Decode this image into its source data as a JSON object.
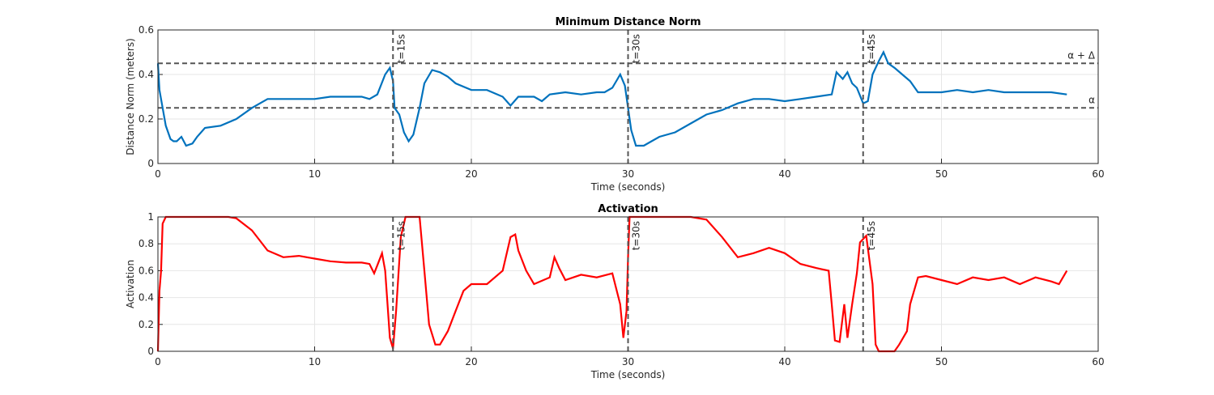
{
  "chart_data": [
    {
      "type": "line",
      "title": "Minimum Distance Norm",
      "xlabel": "Time (seconds)",
      "ylabel": "Distance Norm (meters)",
      "xlim": [
        0,
        60
      ],
      "ylim": [
        0,
        0.6
      ],
      "xticks": [
        0,
        10,
        20,
        30,
        40,
        50,
        60
      ],
      "yticks": [
        0,
        0.2,
        0.4,
        0.6
      ],
      "grid": true,
      "x": [
        0,
        0.1,
        0.3,
        0.5,
        0.8,
        1,
        1.2,
        1.5,
        1.8,
        2.2,
        2.5,
        3,
        4,
        5,
        6,
        7,
        8,
        9,
        10,
        11,
        12,
        13,
        13.5,
        14,
        14.5,
        14.8,
        15,
        15.1,
        15.4,
        15.7,
        16,
        16.3,
        16.7,
        17,
        17.5,
        18,
        18.5,
        19,
        20,
        21,
        22,
        22.5,
        23,
        24,
        24.5,
        25,
        26,
        27,
        28,
        28.5,
        29,
        29.5,
        29.8,
        30,
        30.2,
        30.5,
        31,
        31.5,
        32,
        33,
        34,
        35,
        36,
        37,
        38,
        39,
        40,
        41,
        42,
        43,
        43.3,
        43.7,
        44,
        44.3,
        44.6,
        45,
        45.3,
        45.6,
        46,
        46.3,
        46.6,
        47,
        47.5,
        48,
        48.5,
        49,
        50,
        51,
        52,
        53,
        54,
        55,
        56,
        57,
        58
      ],
      "series": [
        {
          "name": "Distance Norm",
          "color": "#0072BD",
          "values": [
            0.45,
            0.33,
            0.25,
            0.17,
            0.11,
            0.1,
            0.1,
            0.12,
            0.08,
            0.09,
            0.12,
            0.16,
            0.17,
            0.2,
            0.25,
            0.29,
            0.29,
            0.29,
            0.29,
            0.3,
            0.3,
            0.3,
            0.29,
            0.31,
            0.4,
            0.43,
            0.37,
            0.25,
            0.22,
            0.14,
            0.1,
            0.13,
            0.25,
            0.36,
            0.42,
            0.41,
            0.39,
            0.36,
            0.33,
            0.33,
            0.3,
            0.26,
            0.3,
            0.3,
            0.28,
            0.31,
            0.32,
            0.31,
            0.32,
            0.32,
            0.34,
            0.4,
            0.35,
            0.25,
            0.15,
            0.08,
            0.08,
            0.1,
            0.12,
            0.14,
            0.18,
            0.22,
            0.24,
            0.27,
            0.29,
            0.29,
            0.28,
            0.29,
            0.3,
            0.31,
            0.41,
            0.38,
            0.41,
            0.36,
            0.34,
            0.27,
            0.28,
            0.4,
            0.46,
            0.5,
            0.45,
            0.43,
            0.4,
            0.37,
            0.32,
            0.32,
            0.32,
            0.33,
            0.32,
            0.33,
            0.32,
            0.32,
            0.32,
            0.32,
            0.31
          ]
        }
      ],
      "vlines": [
        {
          "x": 15,
          "label": "t=15s"
        },
        {
          "x": 30,
          "label": "t=30s"
        },
        {
          "x": 45,
          "label": "t=45s"
        }
      ],
      "hlines": [
        {
          "y": 0.45,
          "label": "α + Δ"
        },
        {
          "y": 0.25,
          "label": "α"
        }
      ]
    },
    {
      "type": "line",
      "title": "Activation",
      "xlabel": "Time (seconds)",
      "ylabel": "Activation",
      "xlim": [
        0,
        60
      ],
      "ylim": [
        0,
        1
      ],
      "xticks": [
        0,
        10,
        20,
        30,
        40,
        50,
        60
      ],
      "yticks": [
        0,
        0.2,
        0.4,
        0.6,
        0.8,
        1
      ],
      "grid": true,
      "x": [
        0,
        0.1,
        0.2,
        0.3,
        0.5,
        4.5,
        5,
        6,
        7,
        8,
        9,
        10,
        11,
        12,
        13,
        13.5,
        13.8,
        14,
        14.3,
        14.5,
        14.8,
        15,
        15.2,
        15.5,
        15.8,
        16.7,
        17,
        17.3,
        17.7,
        18,
        18.5,
        19,
        19.5,
        20,
        21,
        22,
        22.5,
        22.8,
        23,
        23.5,
        24,
        25,
        25.3,
        25.6,
        26,
        27,
        28,
        29,
        29.5,
        29.7,
        29.9,
        30,
        30.1,
        34,
        35,
        36,
        37,
        38,
        39,
        40,
        41,
        42,
        42.8,
        43,
        43.2,
        43.5,
        43.8,
        44,
        44.3,
        44.6,
        44.8,
        45.2,
        45.6,
        45.8,
        46,
        47,
        47.3,
        47.8,
        48,
        48.5,
        49,
        50,
        51,
        52,
        53,
        54,
        55,
        56,
        57,
        57.5,
        58
      ],
      "series": [
        {
          "name": "Activation",
          "color": "#FF0000",
          "values": [
            0,
            0.45,
            0.6,
            0.95,
            1,
            1,
            0.99,
            0.9,
            0.75,
            0.7,
            0.71,
            0.69,
            0.67,
            0.66,
            0.66,
            0.65,
            0.58,
            0.64,
            0.73,
            0.6,
            0.1,
            0.02,
            0.3,
            0.85,
            1,
            1,
            0.6,
            0.2,
            0.05,
            0.05,
            0.15,
            0.3,
            0.45,
            0.5,
            0.5,
            0.6,
            0.85,
            0.87,
            0.75,
            0.6,
            0.5,
            0.55,
            0.7,
            0.62,
            0.53,
            0.57,
            0.55,
            0.58,
            0.35,
            0.1,
            0.3,
            0.7,
            1,
            1,
            0.98,
            0.85,
            0.7,
            0.73,
            0.77,
            0.73,
            0.65,
            0.62,
            0.6,
            0.35,
            0.08,
            0.07,
            0.35,
            0.1,
            0.35,
            0.58,
            0.81,
            0.86,
            0.5,
            0.05,
            0,
            0,
            0.05,
            0.15,
            0.35,
            0.55,
            0.56,
            0.53,
            0.5,
            0.55,
            0.53,
            0.55,
            0.5,
            0.55,
            0.52,
            0.5,
            0.6
          ]
        }
      ],
      "vlines": [
        {
          "x": 15,
          "label": "t=15s"
        },
        {
          "x": 30,
          "label": "t=30s"
        },
        {
          "x": 45,
          "label": "t=45s"
        }
      ]
    }
  ]
}
